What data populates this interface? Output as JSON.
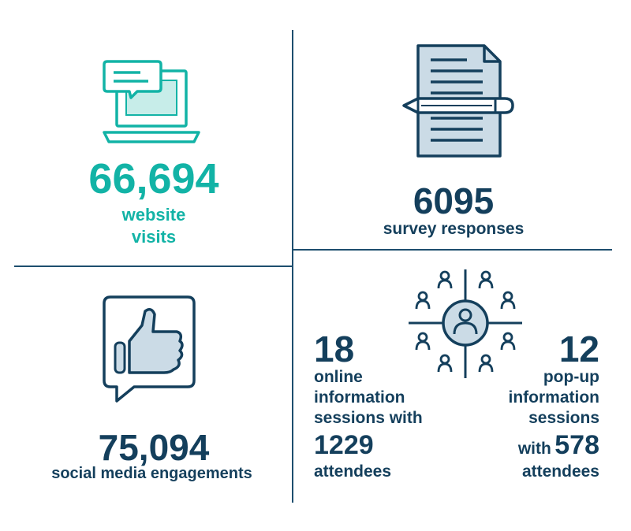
{
  "colors": {
    "teal": "#12b3a6",
    "navy": "#143f5c",
    "light_fill": "#cbdbe6",
    "teal_fill": "#c7ede9"
  },
  "website": {
    "value": "66,694",
    "label_line1": "website",
    "label_line2": "visits",
    "icon": "laptop-chat-icon"
  },
  "survey": {
    "value": "6095",
    "label": "survey responses",
    "icon": "document-pencil-icon"
  },
  "social": {
    "value": "75,094",
    "label": "social media engagements",
    "icon": "thumbs-up-icon"
  },
  "online": {
    "value": "18",
    "line1": "online",
    "line2": "information",
    "line3": "sessions with",
    "attendees": "1229",
    "attendees_label": "attendees"
  },
  "popup": {
    "value": "12",
    "line1": "pop-up",
    "line2": "information",
    "line3": "sessions",
    "with": "with",
    "attendees": "578",
    "attendees_label": "attendees",
    "icon": "community-target-icon"
  }
}
